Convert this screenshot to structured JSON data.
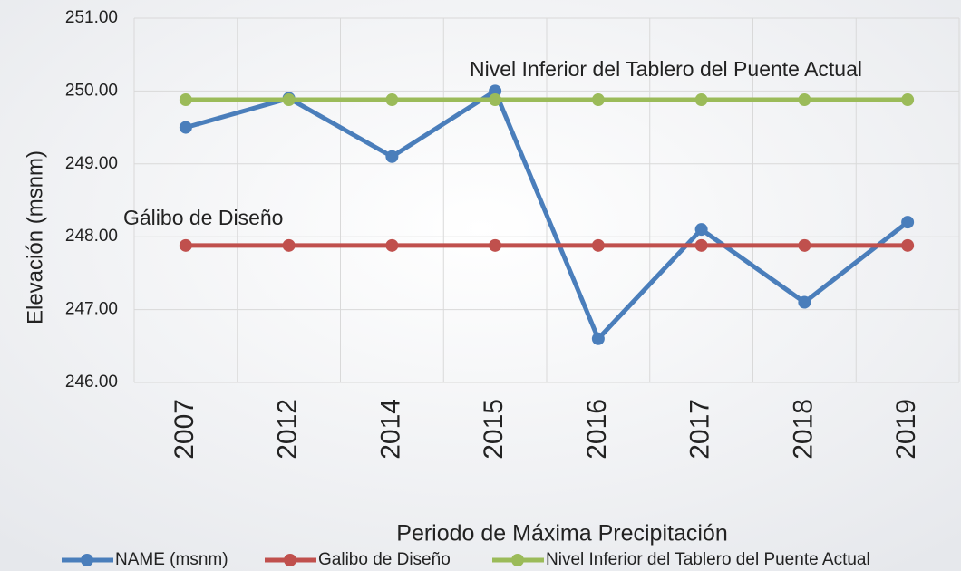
{
  "chart_data": {
    "type": "line",
    "x_label": "Periodo de Máxima Precipitación",
    "y_label": "Elevación (msnm)",
    "categories": [
      "2007",
      "2012",
      "2014",
      "2015",
      "2016",
      "2017",
      "2018",
      "2019"
    ],
    "series": [
      {
        "name": "NAME (msnm)",
        "color": "#4a7ebb",
        "values": [
          249.5,
          249.9,
          249.1,
          250.0,
          246.6,
          248.1,
          247.1,
          248.2
        ]
      },
      {
        "name": "Galibo de Diseño",
        "color": "#c0504d",
        "values": [
          247.88,
          247.88,
          247.88,
          247.88,
          247.88,
          247.88,
          247.88,
          247.88
        ]
      },
      {
        "name": "Nivel Inferior del Tablero del Puente Actual",
        "color": "#9bbb59",
        "values": [
          249.88,
          249.88,
          249.88,
          249.88,
          249.88,
          249.88,
          249.88,
          249.88
        ]
      }
    ],
    "annotations": [
      "Nivel Inferior del Tablero del Puente Actual",
      "Gálibo de Diseño"
    ],
    "ylim": [
      246,
      251
    ],
    "yticks": [
      {
        "value": 246,
        "label": "246.00"
      },
      {
        "value": 247,
        "label": "247.00"
      },
      {
        "value": 248,
        "label": "248.00"
      },
      {
        "value": 249,
        "label": "249.00"
      },
      {
        "value": 250,
        "label": "250.00"
      },
      {
        "value": 251,
        "label": "251.00"
      }
    ],
    "grid": true,
    "legend": "bottom"
  }
}
